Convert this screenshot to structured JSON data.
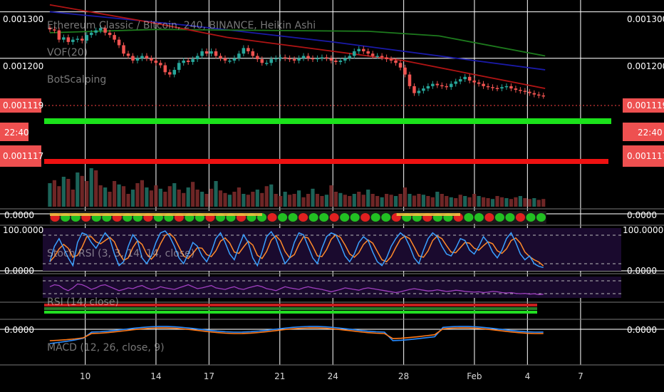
{
  "chart_data": {
    "type": "line",
    "title": "Ethereum Classic / Bitcoin, 240, BINANCE, Heikin Ashi",
    "indicator_labels": [
      "VOF(20)",
      "BotScalping"
    ],
    "y_ticks": [
      "0.001300",
      "0.001200"
    ],
    "ylim": [
      0.00108,
      0.00131
    ],
    "price_tags": {
      "current": "0.001119",
      "countdown": "22:40",
      "marker": "0.001117"
    },
    "x_ticks": [
      "10",
      "14",
      "17",
      "21",
      "24",
      "28",
      "Feb",
      "4",
      "7"
    ],
    "x_tick_days": [
      10,
      14,
      17,
      21,
      24,
      28,
      32,
      35,
      38
    ],
    "xlim": [
      7.6,
      40.3
    ],
    "last_day": 35.9,
    "price_close": [
      0.001262,
      0.00126,
      0.00124,
      0.001245,
      0.001235,
      0.00124,
      0.001242,
      0.001238,
      0.00125,
      0.001255,
      0.00126,
      0.001265,
      0.001255,
      0.00125,
      0.00124,
      0.001228,
      0.00121,
      0.001205,
      0.001195,
      0.0012,
      0.001205,
      0.0012,
      0.001195,
      0.00119,
      0.001185,
      0.00117,
      0.001165,
      0.001175,
      0.00119,
      0.001195,
      0.001192,
      0.001198,
      0.001205,
      0.001215,
      0.00121,
      0.001215,
      0.001205,
      0.0012,
      0.001195,
      0.001195,
      0.0012,
      0.00121,
      0.001222,
      0.001215,
      0.001205,
      0.001198,
      0.00119,
      0.00119,
      0.001198,
      0.0012,
      0.001202,
      0.0012,
      0.001198,
      0.001195,
      0.0012,
      0.001205,
      0.0012,
      0.001198,
      0.0012,
      0.001202,
      0.0012,
      0.001195,
      0.001192,
      0.001195,
      0.0012,
      0.001205,
      0.001215,
      0.00122,
      0.001215,
      0.00121,
      0.001205,
      0.001205,
      0.001202,
      0.001198,
      0.001195,
      0.00119,
      0.00118,
      0.001165,
      0.00114,
      0.001125,
      0.00113,
      0.001135,
      0.00114,
      0.001145,
      0.001142,
      0.00114,
      0.001138,
      0.001145,
      0.00115,
      0.001155,
      0.00116,
      0.001152,
      0.001148,
      0.001145,
      0.00114,
      0.001138,
      0.001136,
      0.001135,
      0.001138,
      0.00114,
      0.001135,
      0.001132,
      0.00113,
      0.001128,
      0.001125,
      0.001122,
      0.00112,
      0.001119
    ],
    "series": [
      {
        "color": "#1a1aa8",
        "values": [
          [
            8,
            0.0013
          ],
          [
            16,
            0.00127
          ],
          [
            24,
            0.001235
          ],
          [
            32,
            0.001195
          ],
          [
            36,
            0.001175
          ]
        ]
      },
      {
        "color": "#1d7a1d",
        "values": [
          [
            8,
            0.001255
          ],
          [
            14,
            0.001262
          ],
          [
            20,
            0.00126
          ],
          [
            26,
            0.001258
          ],
          [
            30,
            0.001248
          ],
          [
            36,
            0.001205
          ]
        ]
      },
      {
        "color": "#b01414",
        "values": [
          [
            8,
            0.001315
          ],
          [
            14,
            0.001275
          ],
          [
            18,
            0.001245
          ],
          [
            22,
            0.001225
          ],
          [
            28,
            0.001195
          ],
          [
            32,
            0.001165
          ],
          [
            36,
            0.001135
          ]
        ]
      }
    ],
    "indicator_ticks": {
      "volume_pane": "0.0000",
      "stoch_top": "100.0000",
      "stoch_bottom": "0.0000",
      "macd": "0.0000"
    },
    "stoch_rsi_label": "Stoch RSI (3, 3, 14, 14, close)",
    "rsi_label": "RSI (14, close)",
    "macd_label": "MACD (12, 26, close, 9)",
    "volume": [
      0.55,
      0.62,
      0.48,
      0.7,
      0.65,
      0.4,
      0.8,
      0.72,
      0.6,
      0.9,
      0.85,
      0.5,
      0.45,
      0.35,
      0.6,
      0.52,
      0.48,
      0.3,
      0.4,
      0.55,
      0.62,
      0.45,
      0.38,
      0.5,
      0.42,
      0.35,
      0.48,
      0.55,
      0.4,
      0.32,
      0.45,
      0.58,
      0.4,
      0.35,
      0.3,
      0.42,
      0.6,
      0.38,
      0.32,
      0.28,
      0.35,
      0.45,
      0.3,
      0.28,
      0.35,
      0.4,
      0.32,
      0.48,
      0.52,
      0.3,
      0.25,
      0.35,
      0.28,
      0.3,
      0.38,
      0.22,
      0.3,
      0.42,
      0.3,
      0.25,
      0.28,
      0.5,
      0.35,
      0.32,
      0.28,
      0.25,
      0.3,
      0.35,
      0.28,
      0.4,
      0.3,
      0.25,
      0.22,
      0.3,
      0.28,
      0.25,
      0.3,
      0.45,
      0.3,
      0.26,
      0.3,
      0.28,
      0.25,
      0.22,
      0.35,
      0.3,
      0.25,
      0.22,
      0.2,
      0.28,
      0.25,
      0.22,
      0.3,
      0.25,
      0.22,
      0.2,
      0.18,
      0.25,
      0.22,
      0.2,
      0.18,
      0.22,
      0.25,
      0.2,
      0.18,
      0.2,
      0.16,
      0.18
    ],
    "stoch_k": [
      20,
      60,
      80,
      55,
      30,
      10,
      70,
      95,
      90,
      70,
      55,
      75,
      95,
      80,
      40,
      10,
      20,
      60,
      90,
      75,
      30,
      15,
      35,
      70,
      95,
      100,
      85,
      60,
      30,
      15,
      40,
      70,
      60,
      35,
      20,
      45,
      80,
      95,
      70,
      40,
      25,
      60,
      90,
      70,
      30,
      10,
      45,
      85,
      98,
      80,
      45,
      15,
      30,
      70,
      95,
      90,
      60,
      30,
      15,
      55,
      85,
      95,
      90,
      65,
      35,
      20,
      40,
      70,
      85,
      75,
      45,
      20,
      10,
      30,
      60,
      80,
      95,
      85,
      60,
      30,
      15,
      50,
      80,
      95,
      85,
      60,
      40,
      35,
      55,
      80,
      75,
      50,
      40,
      60,
      85,
      70,
      45,
      30,
      50,
      80,
      95,
      70,
      40,
      25,
      35,
      15,
      8,
      5
    ],
    "rsi": [
      55,
      60,
      58,
      50,
      45,
      52,
      62,
      60,
      55,
      48,
      52,
      58,
      60,
      55,
      50,
      45,
      48,
      52,
      50,
      55,
      58,
      52,
      48,
      50,
      55,
      52,
      50,
      48,
      52,
      56,
      60,
      55,
      50,
      52,
      55,
      58,
      52,
      50,
      48,
      52,
      55,
      50,
      48,
      52,
      55,
      58,
      55,
      50,
      48,
      45,
      50,
      55,
      52,
      50,
      48,
      52,
      55,
      52,
      50,
      48,
      45,
      42,
      45,
      48,
      52,
      50,
      48,
      46,
      50,
      52,
      50,
      48,
      46,
      44,
      42,
      40,
      42,
      45,
      48,
      50,
      48,
      46,
      44,
      45,
      47,
      45,
      43,
      44,
      46,
      45,
      43,
      42,
      41,
      42,
      40,
      41,
      43,
      42,
      40,
      39,
      40,
      38,
      37,
      38,
      36,
      37,
      35,
      36
    ]
  }
}
